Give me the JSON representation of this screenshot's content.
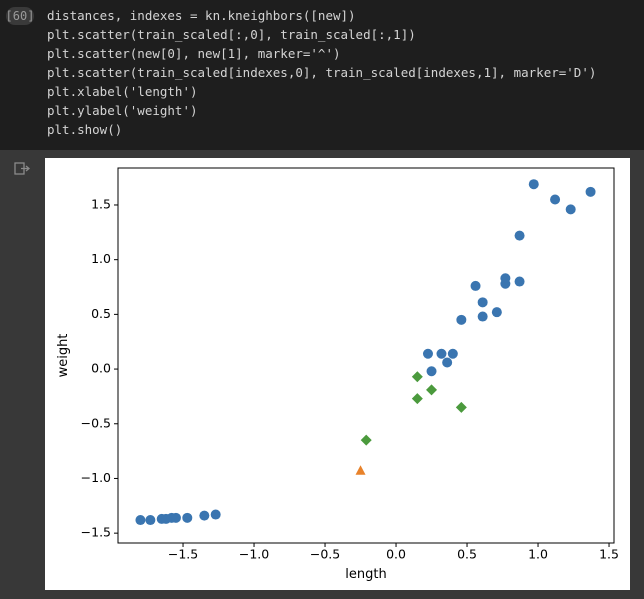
{
  "cell": {
    "execution_count": "[60]",
    "code": [
      "distances, indexes = kn.kneighbors([new])",
      "plt.scatter(train_scaled[:,0], train_scaled[:,1])",
      "plt.scatter(new[0], new[1], marker='^')",
      "plt.scatter(train_scaled[indexes,0], train_scaled[indexes,1], marker='D')",
      "plt.xlabel('length')",
      "plt.ylabel('weight')",
      "plt.show()"
    ]
  },
  "chart_data": {
    "type": "scatter",
    "xlabel": "length",
    "ylabel": "weight",
    "xlim": [
      -1.958,
      1.535
    ],
    "ylim": [
      -1.59,
      1.838
    ],
    "xticks": [
      {
        "value": -1.5,
        "label": "−1.5"
      },
      {
        "value": -1.0,
        "label": "−1.0"
      },
      {
        "value": -0.5,
        "label": "−0.5"
      },
      {
        "value": 0,
        "label": "0.0"
      },
      0.5,
      {
        "value": 1.0,
        "label": "1.0"
      },
      1.5
    ],
    "yticks": [
      {
        "value": -1.5,
        "label": "−1.5"
      },
      {
        "value": -1.0,
        "label": "−1.0"
      },
      {
        "value": -0.5,
        "label": "−0.5"
      },
      {
        "value": 0,
        "label": "0.0"
      },
      0.5,
      {
        "value": 1.0,
        "label": "1.0"
      },
      1.5
    ],
    "series": [
      {
        "color": "#3a75b0",
        "marker": "o",
        "x": [
          -1.8,
          -1.73,
          -1.65,
          -1.62,
          -1.58,
          -1.55,
          -1.47,
          -1.35,
          -1.27,
          0.225,
          0.32,
          0.4,
          0.25,
          0.36,
          0.46,
          0.56,
          0.61,
          0.61,
          0.71,
          0.77,
          0.77,
          0.87,
          0.87,
          0.97,
          1.12,
          1.23,
          1.37
        ],
        "values": [
          -1.38,
          -1.38,
          -1.37,
          -1.37,
          -1.36,
          -1.36,
          -1.36,
          -1.34,
          -1.33,
          0.14,
          0.14,
          0.14,
          -0.02,
          0.06,
          0.45,
          0.76,
          0.61,
          0.48,
          0.52,
          0.83,
          0.78,
          0.8,
          1.22,
          1.69,
          1.55,
          1.46,
          1.62
        ]
      },
      {
        "color": "#e8822a",
        "marker": "^",
        "x": [
          -0.25
        ],
        "values": [
          -0.93
        ]
      },
      {
        "color": "#4b9a3d",
        "marker": "D",
        "x": [
          0.15,
          0.25,
          0.15,
          0.46,
          -0.21
        ],
        "values": [
          -0.07,
          -0.19,
          -0.27,
          -0.35,
          -0.65
        ]
      }
    ]
  }
}
